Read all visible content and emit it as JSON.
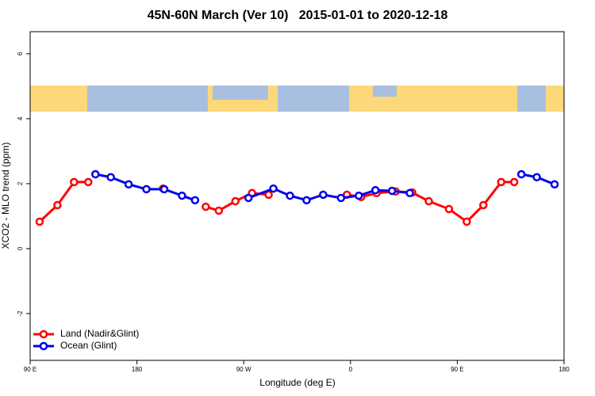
{
  "chart_data": {
    "type": "line",
    "title": "45N-60N March (Ver 10)   2015-01-01 to 2020-12-18",
    "xlabel": "Longitude (deg E)",
    "ylabel": "XCO2 - MLO trend (ppm)",
    "xlim": [
      90,
      540
    ],
    "ylim": [
      -3.44,
      6.68
    ],
    "xticks": [
      {
        "value": 90,
        "label": "90 E"
      },
      {
        "value": 180,
        "label": "180"
      },
      {
        "value": 270,
        "label": "90 W"
      },
      {
        "value": 360,
        "label": "0"
      },
      {
        "value": 450,
        "label": "90 E"
      },
      {
        "value": 540,
        "label": "180"
      }
    ],
    "yticks": [
      -2,
      0,
      2,
      4,
      6
    ],
    "legend": "bottom-left",
    "series": [
      {
        "name": "Land (Nadir&Glint)",
        "color": "#ff0000",
        "x": [
          98,
          113,
          127,
          139,
          null,
          202,
          null,
          238,
          249,
          263,
          277,
          291,
          null,
          357,
          369,
          382,
          398,
          412,
          426,
          443,
          458,
          472,
          487,
          498
        ],
        "values": [
          0.83,
          1.34,
          2.05,
          2.05,
          null,
          1.85,
          null,
          1.29,
          1.17,
          1.46,
          1.71,
          1.66,
          null,
          1.66,
          1.59,
          1.71,
          1.76,
          1.73,
          1.46,
          1.22,
          0.83,
          1.34,
          2.05,
          2.05
        ]
      },
      {
        "name": "Ocean (Glint)",
        "color": "#0000ee",
        "x": [
          145,
          158,
          173,
          188,
          203,
          218,
          229,
          null,
          274,
          295,
          309,
          323,
          337,
          352,
          367,
          381,
          395,
          410,
          null,
          504,
          517,
          532
        ],
        "values": [
          2.29,
          2.2,
          1.98,
          1.83,
          1.83,
          1.63,
          1.49,
          null,
          1.56,
          1.85,
          1.63,
          1.49,
          1.66,
          1.56,
          1.63,
          1.8,
          1.78,
          1.71,
          null,
          2.29,
          2.2,
          1.98
        ]
      }
    ]
  }
}
